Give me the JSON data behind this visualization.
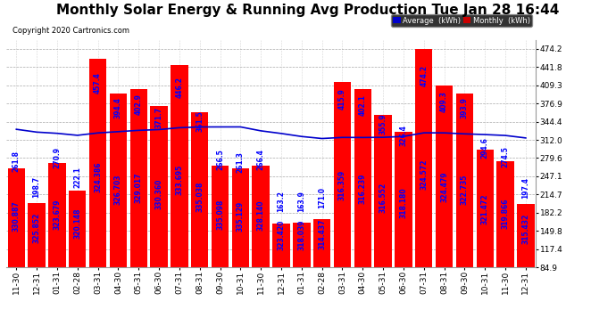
{
  "title": "Monthly Solar Energy & Running Avg Production Tue Jan 28 16:44",
  "copyright": "Copyright 2020 Cartronics.com",
  "categories": [
    "11-30",
    "12-31",
    "01-31",
    "02-28",
    "03-31",
    "04-30",
    "05-31",
    "06-30",
    "07-31",
    "08-31",
    "09-30",
    "10-31",
    "11-30",
    "12-31",
    "01-31",
    "02-28",
    "03-31",
    "04-30",
    "05-31",
    "06-30",
    "07-31",
    "08-31",
    "09-30",
    "10-31",
    "11-30",
    "12-31"
  ],
  "monthly_values": [
    261.8,
    198.7,
    270.9,
    222.1,
    457.4,
    394.4,
    402.9,
    371.7,
    446.2,
    361.5,
    266.5,
    261.3,
    266.4,
    163.2,
    163.9,
    171.0,
    415.9,
    402.1,
    355.9,
    326.4,
    474.2,
    409.3,
    393.9,
    294.6,
    274.5,
    197.4
  ],
  "avg_values": [
    330.887,
    325.852,
    323.679,
    320.148,
    324.386,
    326.703,
    329.017,
    330.36,
    333.695,
    335.038,
    335.098,
    335.129,
    328.14,
    323.42,
    318.039,
    314.437,
    316.359,
    316.239,
    316.552,
    318.18,
    324.572,
    324.479,
    322.735,
    321.472,
    319.866,
    315.432
  ],
  "bar_color": "#ff0000",
  "line_color": "#0000cc",
  "background_color": "#ffffff",
  "grid_color": "#aaaaaa",
  "yticks": [
    84.9,
    117.4,
    149.8,
    182.2,
    214.7,
    247.1,
    279.6,
    312.0,
    344.4,
    376.9,
    409.3,
    441.8,
    474.2
  ],
  "legend_avg_label": "Average  (kWh)",
  "legend_monthly_label": "Monthly  (kWh)",
  "legend_avg_bg": "#0000cc",
  "legend_monthly_bg": "#cc0000",
  "bar_label_color": "#0000ff",
  "title_fontsize": 11,
  "tick_fontsize": 6.5,
  "label_fontsize": 5.5,
  "ymin": 84.9,
  "ymax": 490,
  "figwidth": 6.9,
  "figheight": 3.75,
  "dpi": 100
}
